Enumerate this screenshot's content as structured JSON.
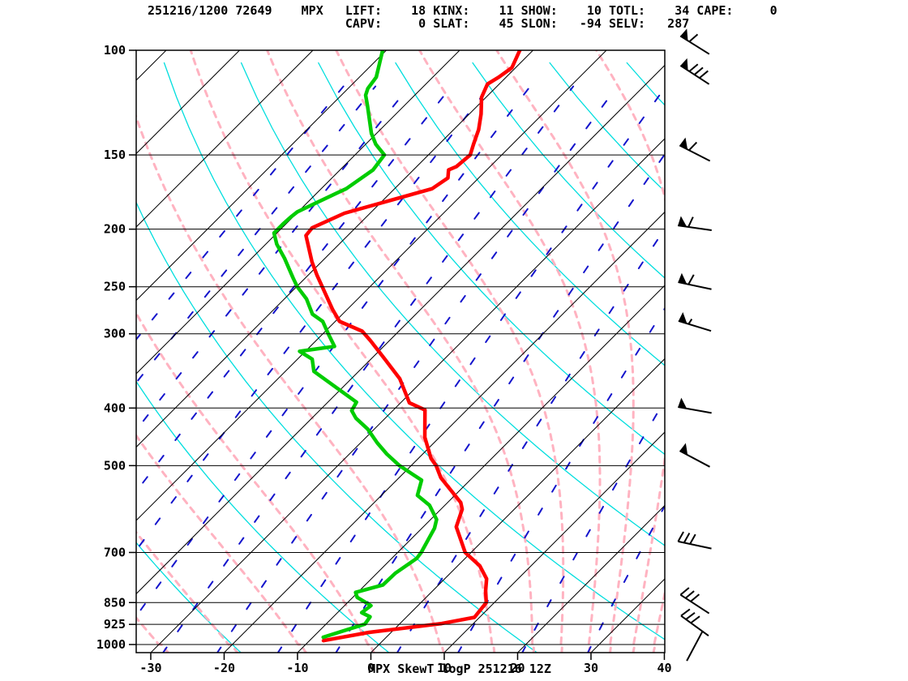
{
  "header": {
    "line1": "251216/1200 72649    MPX   LIFT:    18 KINX:    11 SHOW:    10 TOTL:    34 CAPE:     0",
    "line2": "                           CAPV:     0 SLAT:    45 SLON:   -94 SELV:   287"
  },
  "footer": {
    "title": "MPX SkewT logP 251216 12Z"
  },
  "colors": {
    "temperature": "#ff0000",
    "dewpoint": "#00cc00",
    "isotherm": "#000000",
    "isobar": "#000000",
    "dry_adiabat": "#00dede",
    "moist_adiabat": "#ffb3c1",
    "mixing_ratio": "#1414cc",
    "frame": "#000000",
    "wind_barb": "#000000"
  },
  "chart_data": {
    "type": "skewt-logp",
    "title": "MPX SkewT logP 251216 12Z",
    "station": {
      "id": "72649",
      "name": "MPX",
      "date": "251216",
      "hour": "1200Z"
    },
    "indices": {
      "LIFT": 18,
      "KINX": 11,
      "SHOW": 10,
      "TOTL": 34,
      "CAPE": 0,
      "CAPV": 0,
      "SLAT": 45,
      "SLON": -94,
      "SELV": 287
    },
    "axes": {
      "pressure_ticks_hpa": [
        100,
        150,
        200,
        250,
        300,
        400,
        500,
        700,
        850,
        925,
        1000
      ],
      "temperature_ticks_c": [
        -30,
        -20,
        -10,
        0,
        10,
        20,
        30,
        40
      ],
      "xlim_c": [
        -30,
        40
      ],
      "plim_hpa": [
        100,
        1032
      ],
      "skew_deg": 45,
      "grid": true
    },
    "background_lines": {
      "isotherms_c": {
        "min": -120,
        "max": 40,
        "step": 10
      },
      "dry_adiabats_t1000_c": [
        -20,
        0,
        20,
        40,
        60,
        80,
        100,
        120,
        140,
        160
      ],
      "moist_adiabats_t1000_c": [
        -30,
        -20.5,
        -11,
        -1.5,
        8.3,
        15.4,
        20.9,
        24.8,
        28.6,
        31.5,
        34.7,
        37.5
      ],
      "mixing_ratio_gkg": [
        0.005,
        0.01,
        0.02,
        0.045,
        0.09,
        0.18,
        0.36,
        0.7,
        1.4,
        2.6,
        4.8,
        8.5,
        15,
        26
      ]
    },
    "temperature_profile_p_t": [
      [
        985,
        -8.1
      ],
      [
        954,
        -3.0
      ],
      [
        922,
        5.7
      ],
      [
        900,
        9.3
      ],
      [
        850,
        8.9
      ],
      [
        812,
        7.2
      ],
      [
        775,
        5.7
      ],
      [
        737,
        3.0
      ],
      [
        700,
        -0.8
      ],
      [
        634,
        -5.5
      ],
      [
        592,
        -7.1
      ],
      [
        577,
        -8.2
      ],
      [
        524,
        -14.3
      ],
      [
        500,
        -16.6
      ],
      [
        486,
        -18.3
      ],
      [
        448,
        -22.0
      ],
      [
        403,
        -25.7
      ],
      [
        392,
        -28.8
      ],
      [
        357,
        -33.4
      ],
      [
        331,
        -38.1
      ],
      [
        308,
        -42.6
      ],
      [
        297,
        -45.0
      ],
      [
        286,
        -49.4
      ],
      [
        273,
        -52.0
      ],
      [
        250,
        -56.5
      ],
      [
        239,
        -58.8
      ],
      [
        227,
        -61.3
      ],
      [
        205,
        -65.7
      ],
      [
        199,
        -65.9
      ],
      [
        188,
        -63.5
      ],
      [
        171,
        -54.9
      ],
      [
        164,
        -54.2
      ],
      [
        159,
        -55.2
      ],
      [
        157,
        -54.6
      ],
      [
        150,
        -54.3
      ],
      [
        144,
        -55.3
      ],
      [
        136,
        -56.6
      ],
      [
        128,
        -58.4
      ],
      [
        120,
        -60.6
      ],
      [
        114,
        -61.6
      ],
      [
        111,
        -61.0
      ],
      [
        107,
        -60.5
      ],
      [
        100,
        -61.8
      ]
    ],
    "dewpoint_profile_p_t": [
      [
        972,
        -8.6
      ],
      [
        924,
        -4.7
      ],
      [
        898,
        -5.0
      ],
      [
        884,
        -6.7
      ],
      [
        860,
        -6.4
      ],
      [
        833,
        -9.4
      ],
      [
        817,
        -10.3
      ],
      [
        794,
        -7.6
      ],
      [
        759,
        -7.5
      ],
      [
        716,
        -6.6
      ],
      [
        700,
        -6.8
      ],
      [
        637,
        -8.3
      ],
      [
        616,
        -9.2
      ],
      [
        583,
        -12.1
      ],
      [
        561,
        -15.1
      ],
      [
        529,
        -16.6
      ],
      [
        500,
        -21.6
      ],
      [
        478,
        -24.9
      ],
      [
        458,
        -27.7
      ],
      [
        434,
        -30.9
      ],
      [
        416,
        -34.0
      ],
      [
        404,
        -35.6
      ],
      [
        391,
        -36.1
      ],
      [
        347,
        -46.1
      ],
      [
        331,
        -48.0
      ],
      [
        321,
        -50.8
      ],
      [
        315,
        -46.7
      ],
      [
        301,
        -49.1
      ],
      [
        286,
        -51.7
      ],
      [
        278,
        -54.1
      ],
      [
        262,
        -57.0
      ],
      [
        250,
        -59.9
      ],
      [
        242,
        -61.6
      ],
      [
        224,
        -65.5
      ],
      [
        212,
        -68.5
      ],
      [
        203,
        -70.4
      ],
      [
        196,
        -70.4
      ],
      [
        191,
        -70.3
      ],
      [
        187,
        -70.1
      ],
      [
        174,
        -67.3
      ],
      [
        171,
        -66.6
      ],
      [
        159,
        -65.5
      ],
      [
        150,
        -66.0
      ],
      [
        144,
        -68.6
      ],
      [
        138,
        -70.7
      ],
      [
        124,
        -75.0
      ],
      [
        119,
        -76.7
      ],
      [
        116,
        -77.3
      ],
      [
        111,
        -77.7
      ],
      [
        100,
        -80.5
      ]
    ],
    "wind_barbs": [
      {
        "p": 98,
        "kt": 60,
        "ang": 148
      },
      {
        "p": 110,
        "kt": 80,
        "ang": 147
      },
      {
        "p": 149,
        "kt": 60,
        "ang": 153
      },
      {
        "p": 199,
        "kt": 60,
        "ang": 172
      },
      {
        "p": 249,
        "kt": 60,
        "ang": 168
      },
      {
        "p": 291,
        "kt": 55,
        "ang": 163
      },
      {
        "p": 403,
        "kt": 50,
        "ang": 170
      },
      {
        "p": 487,
        "kt": 50,
        "ang": 152
      },
      {
        "p": 680,
        "kt": 30,
        "ang": 168
      },
      {
        "p": 855,
        "kt": 30,
        "ang": 147
      },
      {
        "p": 930,
        "kt": 30,
        "ang": 144
      },
      {
        "p": 1005,
        "kt": 2,
        "ang": 62
      }
    ]
  }
}
